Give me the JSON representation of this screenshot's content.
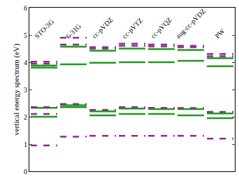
{
  "chart_data": {
    "type": "energy_levels",
    "y_label": "vertical energy spectrum (eV)",
    "categories": [
      "STO-3G",
      "6-31G",
      "cc-pVDZ",
      "cc-pVTZ",
      "cc-pVQZ",
      "aug-cc-pVDZ",
      "PW"
    ],
    "series": [
      {
        "color": "#1f9a1f",
        "line_style": "solid",
        "values": [
          [
            2.0,
            2.33,
            3.8,
            3.88
          ],
          [
            2.35,
            2.42,
            3.92,
            4.57
          ],
          [
            2.05,
            2.2,
            3.98,
            4.42
          ],
          [
            2.1,
            2.3,
            4.0,
            4.5
          ],
          [
            2.1,
            2.28,
            4.0,
            4.48
          ],
          [
            2.05,
            2.28,
            4.05,
            4.45
          ],
          [
            1.95,
            2.12,
            3.85,
            4.15
          ]
        ]
      },
      {
        "color": "#8e2a8e",
        "line_style": "dash",
        "values": [
          [
            0.95,
            2.1,
            2.35,
            3.95,
            4.02
          ],
          [
            1.27,
            2.47,
            4.65,
            4.9
          ],
          [
            1.3,
            2.25,
            4.5,
            4.55
          ],
          [
            1.3,
            2.35,
            4.6,
            4.68
          ],
          [
            1.3,
            2.33,
            4.58,
            4.65
          ],
          [
            1.3,
            2.32,
            4.55,
            4.6
          ],
          [
            1.2,
            2.18,
            4.22,
            4.3
          ]
        ]
      }
    ],
    "ylim": [
      0,
      6
    ],
    "yticks": [
      0,
      1,
      2,
      3,
      4,
      5,
      6
    ],
    "tick_labels": "y",
    "grid": false
  }
}
